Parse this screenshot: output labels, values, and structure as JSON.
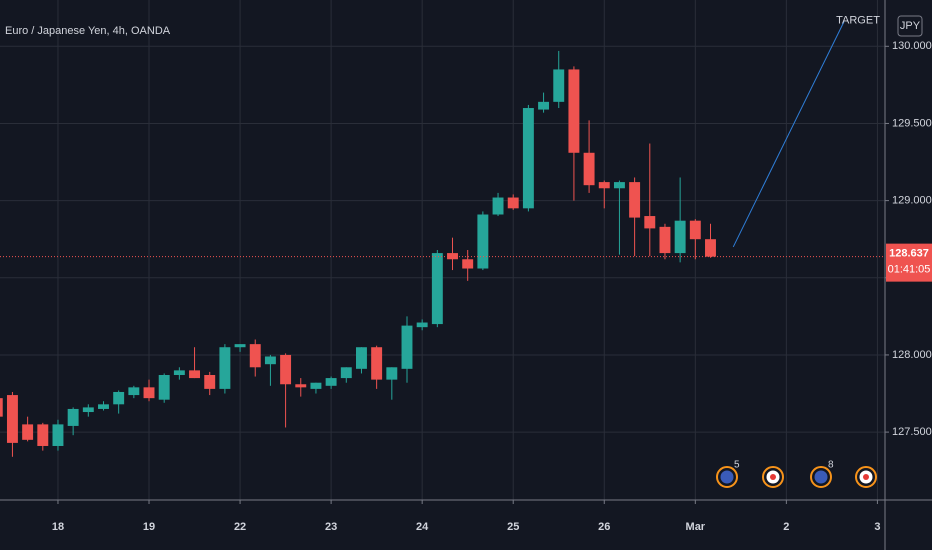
{
  "chart_data": {
    "type": "candlestick",
    "title": "Euro / Japanese Yen, 4h, OANDA",
    "currency": "JPY",
    "up_color": "#26a69a",
    "down_color": "#ef5350",
    "grid": true,
    "x": [
      -4,
      -3,
      -2,
      -1,
      0,
      1,
      2,
      3,
      4,
      5,
      6,
      7,
      8,
      9,
      10,
      11,
      12,
      13,
      14,
      15,
      16,
      17,
      18,
      19,
      20,
      21,
      22,
      23,
      24,
      25,
      26,
      27,
      28,
      29,
      30,
      31,
      32,
      33,
      34,
      35,
      36,
      37,
      38,
      39,
      40,
      41,
      42,
      43
    ],
    "open": [
      127.72,
      127.74,
      127.55,
      127.55,
      127.41,
      127.54,
      127.63,
      127.65,
      127.68,
      127.74,
      127.79,
      127.71,
      127.87,
      127.9,
      127.87,
      127.78,
      128.05,
      128.07,
      127.94,
      128.0,
      127.81,
      127.78,
      127.8,
      127.85,
      127.91,
      128.05,
      127.84,
      127.91,
      128.18,
      128.2,
      128.66,
      128.62,
      128.56,
      128.91,
      129.02,
      128.95,
      129.59,
      129.64,
      129.85,
      129.31,
      129.12,
      129.08,
      129.12,
      128.9,
      128.83,
      128.66,
      128.87,
      128.75
    ],
    "high": [
      127.78,
      127.76,
      127.6,
      127.56,
      127.58,
      127.66,
      127.68,
      127.7,
      127.77,
      127.8,
      127.84,
      127.88,
      127.92,
      128.05,
      127.89,
      128.07,
      128.07,
      128.1,
      128.0,
      128.01,
      127.85,
      127.82,
      127.86,
      127.92,
      128.05,
      128.06,
      127.92,
      128.25,
      128.23,
      128.68,
      128.76,
      128.68,
      128.93,
      129.05,
      129.04,
      129.62,
      129.7,
      129.97,
      129.87,
      129.52,
      129.13,
      129.13,
      129.15,
      129.37,
      128.85,
      129.15,
      128.88,
      128.85
    ],
    "low": [
      127.55,
      127.34,
      127.44,
      127.38,
      127.38,
      127.48,
      127.6,
      127.64,
      127.62,
      127.72,
      127.7,
      127.69,
      127.84,
      127.85,
      127.74,
      127.75,
      128.02,
      127.86,
      127.8,
      127.53,
      127.73,
      127.75,
      127.78,
      127.82,
      127.88,
      127.78,
      127.71,
      127.82,
      128.16,
      128.18,
      128.55,
      128.48,
      128.55,
      128.9,
      128.94,
      128.93,
      129.57,
      129.6,
      129.0,
      129.05,
      128.95,
      128.65,
      128.64,
      128.64,
      128.62,
      128.6,
      128.62,
      128.63
    ],
    "close": [
      127.6,
      127.43,
      127.45,
      127.41,
      127.55,
      127.65,
      127.66,
      127.68,
      127.76,
      127.79,
      127.72,
      127.87,
      127.9,
      127.85,
      127.78,
      128.05,
      128.07,
      127.92,
      127.99,
      127.81,
      127.79,
      127.82,
      127.85,
      127.92,
      128.05,
      127.84,
      127.92,
      128.19,
      128.21,
      128.66,
      128.62,
      128.56,
      128.91,
      129.02,
      128.95,
      129.6,
      129.64,
      129.85,
      129.31,
      129.1,
      129.08,
      129.12,
      128.89,
      128.82,
      128.66,
      128.87,
      128.75,
      128.637
    ],
    "xlim": [
      -3.82,
      54.5
    ],
    "ylim": [
      127.06,
      130.3
    ],
    "xticks": [
      {
        "value": 0,
        "label": "18"
      },
      {
        "value": 6,
        "label": "19"
      },
      {
        "value": 12,
        "label": "22"
      },
      {
        "value": 18,
        "label": "23"
      },
      {
        "value": 24,
        "label": "24"
      },
      {
        "value": 30,
        "label": "25"
      },
      {
        "value": 36,
        "label": "26"
      },
      {
        "value": 42,
        "label": "Mar"
      },
      {
        "value": 48,
        "label": "2"
      },
      {
        "value": 54,
        "label": "3"
      }
    ],
    "yticks": [
      {
        "value": 127.5,
        "label": "127.500"
      },
      {
        "value": 128,
        "label": "128.000"
      },
      {
        "value": 128.5,
        "label": "128.500"
      },
      {
        "value": 129,
        "label": "129.000"
      },
      {
        "value": 129.5,
        "label": "129.500"
      },
      {
        "value": 130,
        "label": "130.000"
      }
    ],
    "last_price": 128.637,
    "countdown": "01:41:05",
    "annotation": {
      "text": "TARGET",
      "color": "#2f7ed8",
      "x": [
        44.5,
        51.8
      ],
      "y": [
        128.7,
        130.16
      ]
    },
    "event_badges": [
      "5",
      "8"
    ]
  }
}
